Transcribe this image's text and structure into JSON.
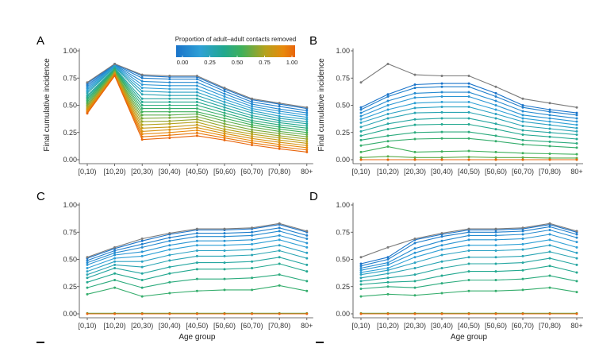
{
  "figure": {
    "legend": {
      "title": "Proportion of adult–adult contacts removed",
      "ticks": [
        "0.00",
        "0.25",
        "0.50",
        "0.75",
        "1.00"
      ],
      "colors": [
        "#1a73c9",
        "#2ea0d6",
        "#22a88f",
        "#3fb05a",
        "#b5a21c",
        "#e8890c",
        "#e8650c"
      ]
    },
    "baseline_color": "#7a7a7a"
  },
  "chart_data": [
    {
      "panel": "A",
      "type": "line",
      "categories": [
        "[0,10)",
        "[10,20)",
        "[20,30)",
        "[30,40)",
        "[40,50)",
        "[50,60)",
        "[60,70)",
        "[70,80)",
        "80+"
      ],
      "ylabel": "Final cumulative incidence",
      "xlabel": "",
      "ylim": [
        0,
        1
      ],
      "yticks": [
        "0.00",
        "0.25",
        "0.50",
        "0.75",
        "1.00"
      ],
      "series": [
        {
          "name": "baseline",
          "values": [
            0.71,
            0.88,
            0.78,
            0.77,
            0.77,
            0.66,
            0.56,
            0.52,
            0.48
          ]
        },
        {
          "name": "0.00",
          "values": [
            0.7,
            0.88,
            0.77,
            0.76,
            0.76,
            0.65,
            0.55,
            0.51,
            0.47
          ]
        },
        {
          "name": "0.05",
          "values": [
            0.685,
            0.875,
            0.75,
            0.74,
            0.74,
            0.63,
            0.53,
            0.49,
            0.45
          ]
        },
        {
          "name": "0.10",
          "values": [
            0.67,
            0.87,
            0.72,
            0.71,
            0.71,
            0.605,
            0.51,
            0.465,
            0.43
          ]
        },
        {
          "name": "0.15",
          "values": [
            0.655,
            0.865,
            0.69,
            0.68,
            0.68,
            0.58,
            0.49,
            0.445,
            0.41
          ]
        },
        {
          "name": "0.20",
          "values": [
            0.64,
            0.86,
            0.66,
            0.65,
            0.65,
            0.555,
            0.47,
            0.425,
            0.39
          ]
        },
        {
          "name": "0.25",
          "values": [
            0.625,
            0.855,
            0.63,
            0.62,
            0.62,
            0.53,
            0.45,
            0.4,
            0.37
          ]
        },
        {
          "name": "0.30",
          "values": [
            0.61,
            0.85,
            0.6,
            0.59,
            0.59,
            0.505,
            0.43,
            0.38,
            0.35
          ]
        },
        {
          "name": "0.35",
          "values": [
            0.59,
            0.84,
            0.56,
            0.56,
            0.56,
            0.48,
            0.405,
            0.36,
            0.33
          ]
        },
        {
          "name": "0.40",
          "values": [
            0.575,
            0.835,
            0.53,
            0.53,
            0.53,
            0.455,
            0.385,
            0.34,
            0.31
          ]
        },
        {
          "name": "0.45",
          "values": [
            0.56,
            0.83,
            0.5,
            0.5,
            0.5,
            0.43,
            0.36,
            0.32,
            0.29
          ]
        },
        {
          "name": "0.50",
          "values": [
            0.545,
            0.825,
            0.47,
            0.47,
            0.47,
            0.405,
            0.34,
            0.3,
            0.27
          ]
        },
        {
          "name": "0.55",
          "values": [
            0.53,
            0.82,
            0.44,
            0.44,
            0.44,
            0.38,
            0.32,
            0.28,
            0.25
          ]
        },
        {
          "name": "0.60",
          "values": [
            0.515,
            0.81,
            0.41,
            0.41,
            0.42,
            0.355,
            0.3,
            0.26,
            0.23
          ]
        },
        {
          "name": "0.65",
          "values": [
            0.5,
            0.805,
            0.38,
            0.385,
            0.395,
            0.33,
            0.275,
            0.24,
            0.21
          ]
        },
        {
          "name": "0.70",
          "values": [
            0.49,
            0.8,
            0.35,
            0.355,
            0.37,
            0.305,
            0.255,
            0.22,
            0.19
          ]
        },
        {
          "name": "0.75",
          "values": [
            0.475,
            0.795,
            0.32,
            0.33,
            0.345,
            0.28,
            0.235,
            0.2,
            0.17
          ]
        },
        {
          "name": "0.80",
          "values": [
            0.465,
            0.79,
            0.29,
            0.3,
            0.32,
            0.26,
            0.215,
            0.18,
            0.15
          ]
        },
        {
          "name": "0.85",
          "values": [
            0.455,
            0.785,
            0.26,
            0.275,
            0.295,
            0.24,
            0.195,
            0.16,
            0.13
          ]
        },
        {
          "name": "0.90",
          "values": [
            0.445,
            0.78,
            0.235,
            0.25,
            0.27,
            0.22,
            0.175,
            0.14,
            0.11
          ]
        },
        {
          "name": "0.95",
          "values": [
            0.435,
            0.775,
            0.21,
            0.225,
            0.245,
            0.2,
            0.155,
            0.12,
            0.09
          ]
        },
        {
          "name": "1.00",
          "values": [
            0.425,
            0.77,
            0.185,
            0.2,
            0.22,
            0.18,
            0.135,
            0.1,
            0.07
          ]
        }
      ]
    },
    {
      "panel": "B",
      "type": "line",
      "categories": [
        "[0,10)",
        "[10,20)",
        "[20,30)",
        "[30,40)",
        "[40,50)",
        "[50,60)",
        "[60,70)",
        "[70,80)",
        "80+"
      ],
      "ylabel": "Final cumulative incidence",
      "xlabel": "",
      "ylim": [
        0,
        1
      ],
      "yticks": [
        "0.00",
        "0.25",
        "0.50",
        "0.75",
        "1.00"
      ],
      "series": [
        {
          "name": "baseline",
          "values": [
            0.71,
            0.88,
            0.78,
            0.77,
            0.77,
            0.67,
            0.56,
            0.52,
            0.48
          ]
        },
        {
          "name": "0.00",
          "values": [
            0.48,
            0.6,
            0.69,
            0.7,
            0.7,
            0.61,
            0.5,
            0.46,
            0.43
          ]
        },
        {
          "name": "0.05",
          "values": [
            0.46,
            0.58,
            0.66,
            0.67,
            0.67,
            0.58,
            0.48,
            0.44,
            0.41
          ]
        },
        {
          "name": "0.10",
          "values": [
            0.43,
            0.54,
            0.61,
            0.62,
            0.62,
            0.54,
            0.445,
            0.41,
            0.38
          ]
        },
        {
          "name": "0.15",
          "values": [
            0.4,
            0.5,
            0.57,
            0.58,
            0.58,
            0.5,
            0.41,
            0.38,
            0.35
          ]
        },
        {
          "name": "0.20",
          "values": [
            0.37,
            0.46,
            0.52,
            0.53,
            0.53,
            0.46,
            0.38,
            0.35,
            0.32
          ]
        },
        {
          "name": "0.25",
          "values": [
            0.34,
            0.42,
            0.475,
            0.485,
            0.485,
            0.42,
            0.35,
            0.32,
            0.29
          ]
        },
        {
          "name": "0.30",
          "values": [
            0.3,
            0.38,
            0.43,
            0.435,
            0.435,
            0.38,
            0.31,
            0.285,
            0.26
          ]
        },
        {
          "name": "0.35",
          "values": [
            0.26,
            0.33,
            0.37,
            0.38,
            0.38,
            0.33,
            0.27,
            0.25,
            0.23
          ]
        },
        {
          "name": "0.40",
          "values": [
            0.22,
            0.28,
            0.32,
            0.325,
            0.325,
            0.28,
            0.23,
            0.21,
            0.19
          ]
        },
        {
          "name": "0.45",
          "values": [
            0.18,
            0.22,
            0.25,
            0.255,
            0.255,
            0.22,
            0.18,
            0.165,
            0.15
          ]
        },
        {
          "name": "0.50",
          "values": [
            0.13,
            0.17,
            0.19,
            0.195,
            0.195,
            0.17,
            0.14,
            0.125,
            0.11
          ]
        },
        {
          "name": "0.55",
          "values": [
            0.07,
            0.12,
            0.07,
            0.075,
            0.08,
            0.07,
            0.06,
            0.055,
            0.05
          ]
        },
        {
          "name": "0.60",
          "values": [
            0.02,
            0.03,
            0.02,
            0.02,
            0.025,
            0.02,
            0.02,
            0.015,
            0.015
          ]
        },
        {
          "name": "0.70",
          "values": [
            0.0,
            0.0,
            0.0,
            0.0,
            0.0,
            0.0,
            0.0,
            0.0,
            0.0
          ]
        },
        {
          "name": "1.00",
          "values": [
            0.0,
            0.0,
            0.0,
            0.0,
            0.0,
            0.0,
            0.0,
            0.0,
            0.0
          ]
        }
      ]
    },
    {
      "panel": "C",
      "type": "line",
      "categories": [
        "[0,10)",
        "[10,20)",
        "[20,30)",
        "[30,40)",
        "[40,50)",
        "[50,60)",
        "[60,70)",
        "[70,80)",
        "80+"
      ],
      "ylabel": "",
      "xlabel": "Age group",
      "ylim": [
        0,
        1
      ],
      "yticks": [
        "0.00",
        "0.25",
        "0.50",
        "0.75",
        "1.00"
      ],
      "series": [
        {
          "name": "baseline",
          "values": [
            0.52,
            0.61,
            0.69,
            0.74,
            0.78,
            0.78,
            0.79,
            0.83,
            0.76
          ]
        },
        {
          "name": "0.00",
          "values": [
            0.51,
            0.6,
            0.67,
            0.73,
            0.77,
            0.77,
            0.78,
            0.82,
            0.75
          ]
        },
        {
          "name": "0.05",
          "values": [
            0.49,
            0.58,
            0.64,
            0.7,
            0.74,
            0.74,
            0.75,
            0.79,
            0.72
          ]
        },
        {
          "name": "0.10",
          "values": [
            0.47,
            0.56,
            0.61,
            0.67,
            0.71,
            0.71,
            0.72,
            0.76,
            0.69
          ]
        },
        {
          "name": "0.15",
          "values": [
            0.45,
            0.54,
            0.57,
            0.63,
            0.67,
            0.67,
            0.68,
            0.72,
            0.65
          ]
        },
        {
          "name": "0.20",
          "values": [
            0.42,
            0.51,
            0.53,
            0.59,
            0.63,
            0.63,
            0.64,
            0.68,
            0.61
          ]
        },
        {
          "name": "0.25",
          "values": [
            0.39,
            0.48,
            0.48,
            0.54,
            0.58,
            0.58,
            0.59,
            0.63,
            0.56
          ]
        },
        {
          "name": "0.30",
          "values": [
            0.36,
            0.45,
            0.43,
            0.49,
            0.53,
            0.53,
            0.54,
            0.58,
            0.51
          ]
        },
        {
          "name": "0.35",
          "values": [
            0.33,
            0.42,
            0.37,
            0.43,
            0.47,
            0.47,
            0.48,
            0.52,
            0.45
          ]
        },
        {
          "name": "0.40",
          "values": [
            0.29,
            0.37,
            0.31,
            0.37,
            0.41,
            0.41,
            0.42,
            0.46,
            0.39
          ]
        },
        {
          "name": "0.45",
          "values": [
            0.24,
            0.31,
            0.24,
            0.29,
            0.32,
            0.32,
            0.33,
            0.36,
            0.3
          ]
        },
        {
          "name": "0.50",
          "values": [
            0.18,
            0.24,
            0.16,
            0.19,
            0.21,
            0.22,
            0.22,
            0.26,
            0.21
          ]
        },
        {
          "name": "0.60",
          "values": [
            0.005,
            0.005,
            0.005,
            0.005,
            0.005,
            0.005,
            0.005,
            0.005,
            0.005
          ]
        },
        {
          "name": "1.00",
          "values": [
            0.0,
            0.0,
            0.0,
            0.0,
            0.0,
            0.0,
            0.0,
            0.0,
            0.0
          ]
        }
      ]
    },
    {
      "panel": "D",
      "type": "line",
      "categories": [
        "[0,10)",
        "[10,20)",
        "[20,30)",
        "[30,40)",
        "[40,50)",
        "[50,60)",
        "[60,70)",
        "[70,80)",
        "80+"
      ],
      "ylabel": "",
      "xlabel": "Age group",
      "ylim": [
        0,
        1
      ],
      "yticks": [
        "0.00",
        "0.25",
        "0.50",
        "0.75",
        "1.00"
      ],
      "series": [
        {
          "name": "baseline",
          "values": [
            0.52,
            0.61,
            0.69,
            0.74,
            0.78,
            0.78,
            0.79,
            0.83,
            0.76
          ]
        },
        {
          "name": "0.00",
          "values": [
            0.46,
            0.52,
            0.68,
            0.73,
            0.77,
            0.77,
            0.78,
            0.82,
            0.75
          ]
        },
        {
          "name": "0.05",
          "values": [
            0.44,
            0.5,
            0.65,
            0.71,
            0.75,
            0.75,
            0.76,
            0.8,
            0.73
          ]
        },
        {
          "name": "0.10",
          "values": [
            0.42,
            0.47,
            0.6,
            0.67,
            0.72,
            0.72,
            0.73,
            0.77,
            0.7
          ]
        },
        {
          "name": "0.15",
          "values": [
            0.4,
            0.45,
            0.56,
            0.63,
            0.68,
            0.68,
            0.69,
            0.73,
            0.66
          ]
        },
        {
          "name": "0.20",
          "values": [
            0.38,
            0.42,
            0.52,
            0.59,
            0.63,
            0.63,
            0.64,
            0.68,
            0.61
          ]
        },
        {
          "name": "0.25",
          "values": [
            0.36,
            0.4,
            0.47,
            0.54,
            0.58,
            0.58,
            0.59,
            0.63,
            0.56
          ]
        },
        {
          "name": "0.30",
          "values": [
            0.33,
            0.37,
            0.42,
            0.48,
            0.52,
            0.52,
            0.53,
            0.57,
            0.51
          ]
        },
        {
          "name": "0.35",
          "values": [
            0.3,
            0.33,
            0.36,
            0.42,
            0.46,
            0.46,
            0.47,
            0.51,
            0.45
          ]
        },
        {
          "name": "0.40",
          "values": [
            0.27,
            0.29,
            0.3,
            0.35,
            0.39,
            0.39,
            0.4,
            0.44,
            0.38
          ]
        },
        {
          "name": "0.45",
          "values": [
            0.23,
            0.25,
            0.24,
            0.28,
            0.31,
            0.31,
            0.32,
            0.35,
            0.3
          ]
        },
        {
          "name": "0.50",
          "values": [
            0.16,
            0.18,
            0.17,
            0.19,
            0.21,
            0.21,
            0.22,
            0.24,
            0.2
          ]
        },
        {
          "name": "0.60",
          "values": [
            0.005,
            0.005,
            0.005,
            0.005,
            0.005,
            0.005,
            0.005,
            0.005,
            0.005
          ]
        },
        {
          "name": "1.00",
          "values": [
            0.0,
            0.0,
            0.0,
            0.0,
            0.0,
            0.0,
            0.0,
            0.0,
            0.0
          ]
        }
      ]
    }
  ]
}
